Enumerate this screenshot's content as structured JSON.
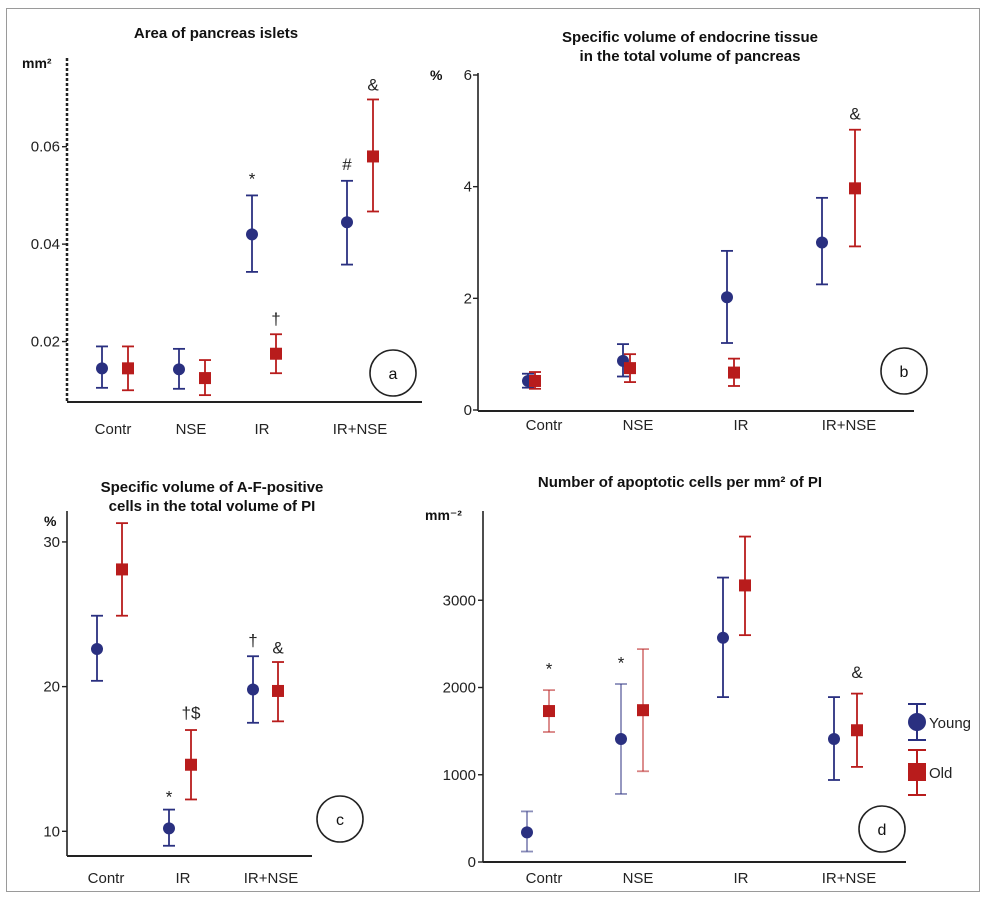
{
  "legend": {
    "young_label": "Young",
    "old_label": "Old",
    "young_color": "#2a3080",
    "old_color": "#b81c1c"
  },
  "chart_data": [
    {
      "id": "a",
      "type": "scatter",
      "title": "Area of pancreas islets",
      "ylabel": "mm²",
      "ylim": [
        0.008,
        0.07
      ],
      "yticks": [
        0.02,
        0.04,
        0.06
      ],
      "ytick_labels": [
        "0.02",
        "0.04",
        "0.06"
      ],
      "categories": [
        "Contr",
        "NSE",
        "IR",
        "IR+NSE"
      ],
      "series": [
        {
          "name": "Young",
          "values": [
            0.0145,
            0.0143,
            0.042,
            0.0445
          ],
          "err_low": [
            0.0105,
            0.0103,
            0.0343,
            0.0358
          ],
          "err_high": [
            0.019,
            0.0185,
            0.05,
            0.053
          ]
        },
        {
          "name": "Old",
          "values": [
            0.0145,
            0.0125,
            0.0175,
            0.058
          ],
          "err_low": [
            0.01,
            0.009,
            0.0135,
            0.0467
          ],
          "err_high": [
            0.019,
            0.0162,
            0.0215,
            0.0697
          ]
        }
      ],
      "markers": [
        {
          "text": "*",
          "category": 2,
          "series": 0,
          "y": 0.0522
        },
        {
          "text": "#",
          "category": 3,
          "series": 0,
          "y": 0.0552
        },
        {
          "text": "&",
          "category": 3,
          "series": 1,
          "y": 0.0715
        },
        {
          "text": "†",
          "category": 2,
          "series": 1,
          "y": 0.0235
        }
      ],
      "panel_label": "a"
    },
    {
      "id": "b",
      "type": "scatter",
      "title": "Specific volume of endocrine tissue",
      "subtitle": "in the total volume of pancreas",
      "ylabel": "%",
      "ylim": [
        0,
        6
      ],
      "yticks": [
        0,
        2,
        4,
        6
      ],
      "ytick_labels": [
        "0",
        "2",
        "4",
        "6"
      ],
      "categories": [
        "Contr",
        "NSE",
        "IR",
        "IR+NSE"
      ],
      "series": [
        {
          "name": "Young",
          "values": [
            0.52,
            0.88,
            2.02,
            3.0
          ],
          "err_low": [
            0.4,
            0.6,
            1.2,
            2.25
          ],
          "err_high": [
            0.65,
            1.18,
            2.85,
            3.8
          ]
        },
        {
          "name": "Old",
          "values": [
            0.52,
            0.75,
            0.67,
            3.97
          ],
          "err_low": [
            0.38,
            0.5,
            0.43,
            2.93
          ],
          "err_high": [
            0.68,
            1.0,
            0.92,
            5.02
          ]
        }
      ],
      "markers": [
        {
          "text": "&",
          "category": 3,
          "series": 1,
          "y": 5.2
        }
      ],
      "panel_label": "b"
    },
    {
      "id": "c",
      "type": "scatter",
      "title": "Specific volume of A-F-positive",
      "subtitle": "cells in the total volume of PI",
      "ylabel": "%",
      "ylim": [
        8.5,
        32
      ],
      "yticks": [
        10,
        20,
        30
      ],
      "ytick_labels": [
        "10",
        "20",
        "30"
      ],
      "categories": [
        "Contr",
        "IR",
        "IR+NSE"
      ],
      "series": [
        {
          "name": "Young",
          "values": [
            22.6,
            10.2,
            19.8
          ],
          "err_low": [
            20.4,
            9.0,
            17.5
          ],
          "err_high": [
            24.9,
            11.5,
            22.1
          ]
        },
        {
          "name": "Old",
          "values": [
            28.1,
            14.6,
            19.7
          ],
          "err_low": [
            24.9,
            12.2,
            17.6
          ],
          "err_high": [
            31.3,
            17.0,
            21.7
          ]
        }
      ],
      "markers": [
        {
          "text": "*",
          "category": 1,
          "series": 0,
          "y": 12.0
        },
        {
          "text": "†$",
          "category": 1,
          "series": 1,
          "y": 17.8
        },
        {
          "text": "†",
          "category": 2,
          "series": 0,
          "y": 22.8
        },
        {
          "text": "&",
          "category": 2,
          "series": 1,
          "y": 22.3
        }
      ],
      "panel_label": "c"
    },
    {
      "id": "d",
      "type": "scatter",
      "title": "Number of apoptotic cells per mm² of PI",
      "ylabel": "mm⁻²",
      "ylim": [
        0,
        4000
      ],
      "yticks": [
        0,
        1000,
        2000,
        3000
      ],
      "ytick_labels": [
        "0",
        "1000",
        "2000",
        "3000"
      ],
      "categories": [
        "Contr",
        "NSE",
        "IR",
        "IR+NSE"
      ],
      "series": [
        {
          "name": "Young",
          "values": [
            340,
            1410,
            2570,
            1410
          ],
          "err_low": [
            120,
            780,
            1890,
            940
          ],
          "err_high": [
            580,
            2040,
            3260,
            1890
          ]
        },
        {
          "name": "Old",
          "values": [
            1730,
            1740,
            3170,
            1510
          ],
          "err_low": [
            1490,
            1040,
            2600,
            1090
          ],
          "err_high": [
            1970,
            2440,
            3730,
            1930
          ]
        }
      ],
      "markers": [
        {
          "text": "*",
          "category": 0,
          "series": 1,
          "y": 2150
        },
        {
          "text": "*",
          "category": 1,
          "series": 0,
          "y": 2220
        },
        {
          "text": "&",
          "category": 3,
          "series": 1,
          "y": 2110
        }
      ],
      "panel_label": "d"
    }
  ]
}
